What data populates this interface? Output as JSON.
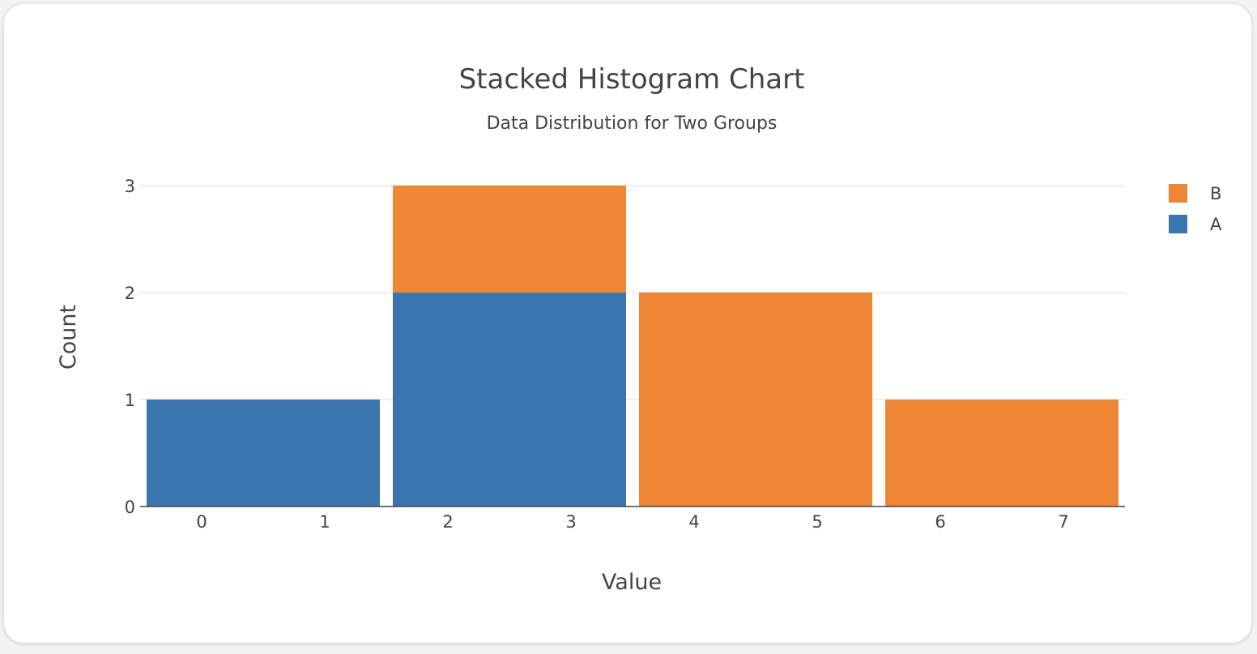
{
  "chart_data": {
    "type": "bar",
    "title": "Stacked Histogram Chart",
    "subtitle": "Data Distribution for Two Groups",
    "xlabel": "Value",
    "ylabel": "Count",
    "barmode": "stack",
    "bins": [
      {
        "start": -0.5,
        "end": 1.5
      },
      {
        "start": 1.5,
        "end": 3.5
      },
      {
        "start": 3.5,
        "end": 5.5
      },
      {
        "start": 5.5,
        "end": 7.5
      }
    ],
    "series": [
      {
        "name": "A",
        "color": "#3a75b0",
        "values": [
          1,
          2,
          0,
          0
        ]
      },
      {
        "name": "B",
        "color": "#ef8636",
        "values": [
          0,
          1,
          2,
          1
        ]
      }
    ],
    "x_ticks": [
      "0",
      "1",
      "2",
      "3",
      "4",
      "5",
      "6",
      "7"
    ],
    "x_tick_values": [
      0,
      1,
      2,
      3,
      4,
      5,
      6,
      7
    ],
    "y_ticks": [
      "0",
      "1",
      "2",
      "3"
    ],
    "y_tick_values": [
      0,
      1,
      2,
      3
    ],
    "xlim": [
      -0.5,
      7.5
    ],
    "ylim": [
      0,
      3
    ],
    "grid": true,
    "legend": {
      "position": "top-right",
      "order": [
        "B",
        "A"
      ]
    }
  }
}
